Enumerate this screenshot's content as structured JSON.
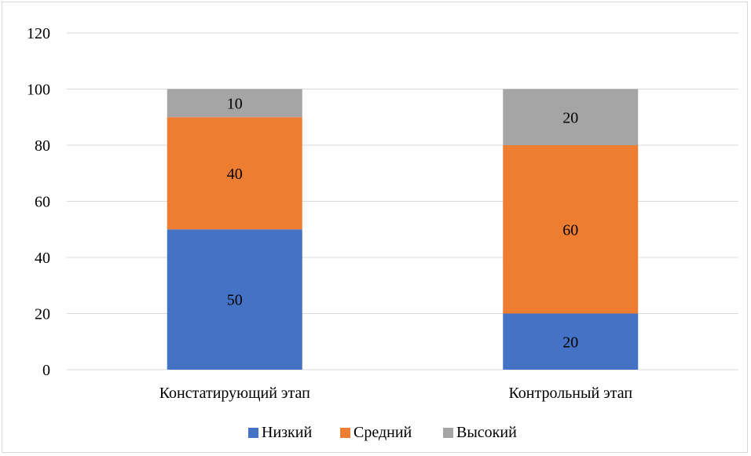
{
  "chart_data": {
    "type": "bar",
    "stacked": true,
    "categories": [
      "Констатирующий этап",
      "Контрольный этап"
    ],
    "series": [
      {
        "name": "Низкий",
        "values": [
          50,
          20
        ],
        "color": "#4472C4"
      },
      {
        "name": "Средний",
        "values": [
          40,
          60
        ],
        "color": "#ED7D31"
      },
      {
        "name": "Высокий",
        "values": [
          10,
          20
        ],
        "color": "#A5A5A5"
      }
    ],
    "ylim": [
      0,
      120
    ],
    "yticks": [
      0,
      20,
      40,
      60,
      80,
      100,
      120
    ],
    "grid": true,
    "legend_position": "bottom",
    "data_labels": true,
    "title": "",
    "xlabel": "",
    "ylabel": ""
  }
}
